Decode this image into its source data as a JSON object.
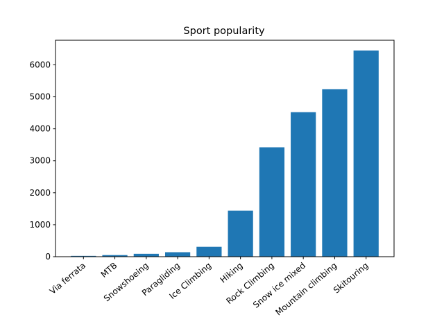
{
  "chart_data": {
    "type": "bar",
    "title": "Sport popularity",
    "xlabel": "",
    "ylabel": "",
    "categories": [
      "Via ferrata",
      "MTB",
      "Snowshoeing",
      "Paragliding",
      "Ice Climbing",
      "Hiking",
      "Rock Climbing",
      "Snow ice mixed",
      "Mountain climbing",
      "Skitouring"
    ],
    "values": [
      25,
      50,
      90,
      140,
      310,
      1440,
      3420,
      4520,
      5240,
      6450
    ],
    "ylim": [
      0,
      6770
    ],
    "yticks": [
      0,
      1000,
      2000,
      3000,
      4000,
      5000,
      6000
    ],
    "ytick_labels": [
      "0",
      "1000",
      "2000",
      "3000",
      "4000",
      "5000",
      "6000"
    ],
    "bar_color": "#1f77b4",
    "grid": false,
    "x_tick_rotation_deg": 40
  }
}
